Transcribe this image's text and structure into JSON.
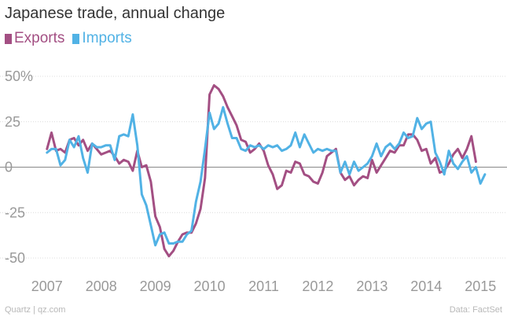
{
  "chart_data": {
    "type": "line",
    "title": "Japanese trade, annual change",
    "xlabel": "",
    "ylabel": "",
    "x_range": [
      2006.8,
      2015.2
    ],
    "ylim": [
      -55,
      55
    ],
    "y_ticks": [
      50,
      25,
      0,
      -25,
      -50
    ],
    "y_tick_labels": [
      "50%",
      "25",
      "0",
      "-25",
      "-50"
    ],
    "x_ticks": [
      2007,
      2008,
      2009,
      2010,
      2011,
      2012,
      2013,
      2014,
      2015
    ],
    "x_tick_labels": [
      "2007",
      "2008",
      "2009",
      "2010",
      "2011",
      "2012",
      "2013",
      "2014",
      "2015"
    ],
    "start": 2007.0,
    "step": 0.08333,
    "series": [
      {
        "name": "Exports",
        "color": "#a34f83",
        "values": [
          10,
          19,
          9,
          10,
          8,
          15,
          16,
          12,
          15,
          9,
          13,
          10,
          7,
          8,
          9,
          6,
          2,
          4,
          3,
          -2,
          9,
          0,
          1,
          -8,
          -27,
          -33,
          -45,
          -49,
          -46,
          -41,
          -37,
          -36,
          -36,
          -31,
          -23,
          -6,
          40,
          45,
          43,
          39,
          33,
          28,
          23,
          15,
          14,
          8,
          10,
          13,
          9,
          1,
          -4,
          -12,
          -10,
          -2,
          -3,
          3,
          2,
          -4,
          -5,
          -8,
          -9,
          -3,
          6,
          8,
          10,
          -3,
          -7,
          -5,
          -10,
          -7,
          -5,
          -6,
          4,
          -3,
          1,
          5,
          9,
          8,
          12,
          12,
          18,
          18,
          15,
          9,
          10,
          2,
          5,
          -3,
          -2,
          2,
          7,
          10,
          5,
          10,
          17,
          3
        ]
      },
      {
        "name": "Imports",
        "color": "#51b2e5",
        "values": [
          8,
          10,
          10,
          1,
          4,
          15,
          11,
          17,
          5,
          -3,
          13,
          11,
          11,
          12,
          12,
          4,
          17,
          18,
          17,
          29,
          12,
          -15,
          -21,
          -32,
          -43,
          -37,
          -36,
          -42,
          -42,
          -41,
          -41,
          -37,
          -35,
          -19,
          -8,
          10,
          30,
          21,
          24,
          33,
          24,
          16,
          16,
          10,
          9,
          12,
          11,
          12,
          10,
          12,
          11,
          12,
          9,
          10,
          12,
          19,
          11,
          18,
          13,
          8,
          10,
          9,
          10,
          9,
          9,
          -3,
          3,
          -4,
          3,
          -2,
          0,
          2,
          6,
          13,
          6,
          11,
          13,
          10,
          13,
          19,
          16,
          17,
          27,
          21,
          24,
          25,
          8,
          3,
          -4,
          9,
          2,
          -1,
          3,
          6,
          -3,
          0,
          -9,
          -4
        ]
      }
    ]
  },
  "footer": {
    "source_left": "Quartz | qz.com",
    "source_right": "Data: FactSet"
  }
}
